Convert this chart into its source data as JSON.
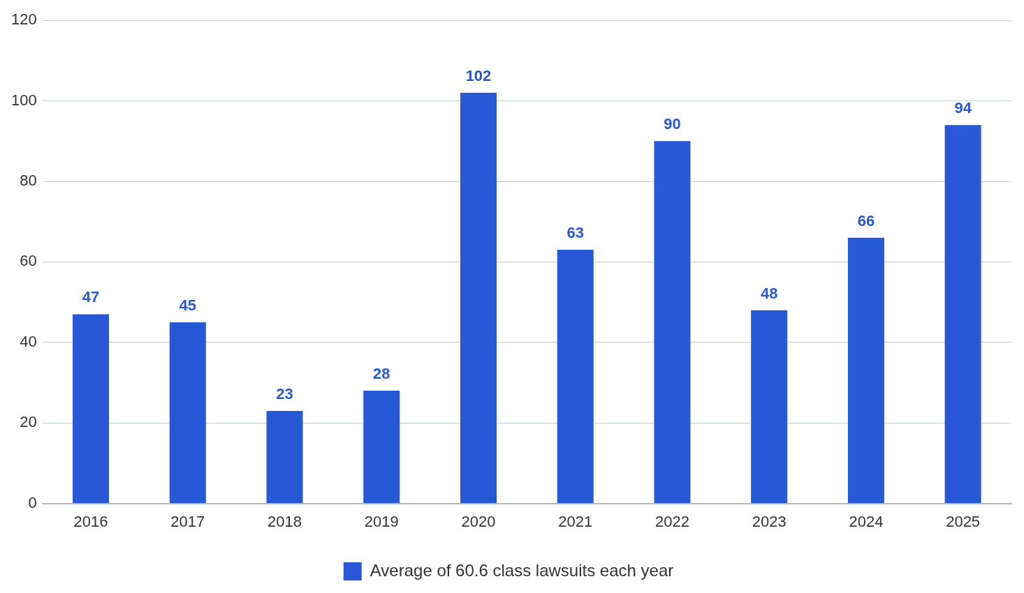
{
  "chart_data": {
    "type": "bar",
    "categories": [
      "2016",
      "2017",
      "2018",
      "2019",
      "2020",
      "2021",
      "2022",
      "2023",
      "2024",
      "2025"
    ],
    "series": [
      {
        "name": "Average of 60.6 class lawsuits each year",
        "color": "#2858d6",
        "values": [
          47,
          45,
          23,
          28,
          102,
          63,
          90,
          48,
          66,
          94
        ]
      }
    ],
    "ylim": [
      0,
      120
    ],
    "yticks": [
      0,
      20,
      40,
      60,
      80,
      100,
      120
    ],
    "grid": "y",
    "legend": "bottom",
    "data_labels": true
  }
}
